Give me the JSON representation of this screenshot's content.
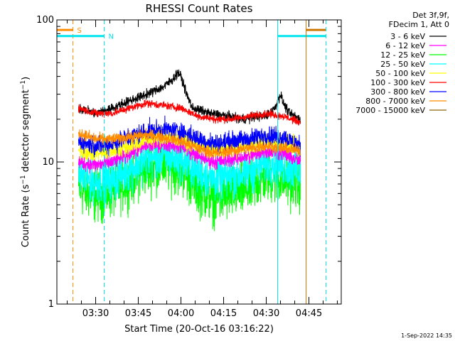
{
  "chart_data": {
    "type": "line",
    "title": "RHESSI Count Rates",
    "xlabel": "Start Time (20-Oct-16 03:16:22)",
    "ylabel_main": "Count Rate (s",
    "ylabel_sup1": "−1",
    "ylabel_mid": " detector segment",
    "ylabel_sup2": "−1",
    "ylabel_end": ")",
    "y_scale": "log",
    "ylim": [
      1,
      100
    ],
    "xlim": [
      "03:16:22",
      "04:56:22"
    ],
    "x_ticks": [
      {
        "t": "03:30",
        "label": "03:30"
      },
      {
        "t": "03:45",
        "label": "03:45"
      },
      {
        "t": "04:00",
        "label": "04:00"
      },
      {
        "t": "04:15",
        "label": "04:15"
      },
      {
        "t": "04:30",
        "label": "04:30"
      },
      {
        "t": "04:45",
        "label": "04:45"
      }
    ],
    "y_ticks": [
      {
        "v": 1,
        "label": "1"
      },
      {
        "v": 10,
        "label": "10"
      },
      {
        "v": 100,
        "label": "100"
      }
    ],
    "legend_header": [
      "Det 3f,9f,",
      "FDecim 1, Att 0"
    ],
    "legend_position": "top-right, outside plot",
    "series": [
      {
        "name": "3 - 6 keV",
        "color": "#000000",
        "times": [
          "03:24",
          "03:30",
          "03:36",
          "03:42",
          "03:48",
          "03:54",
          "03:57",
          "03:59",
          "04:00",
          "04:02",
          "04:04",
          "04:10",
          "04:16",
          "04:22",
          "04:27",
          "04:30",
          "04:33",
          "04:35",
          "04:36",
          "04:38",
          "04:40",
          "04:42"
        ],
        "values": [
          24,
          22,
          24,
          27,
          30,
          34,
          38,
          43,
          40,
          30,
          24,
          22,
          21,
          20,
          21,
          21,
          24,
          30,
          26,
          22,
          21,
          20
        ]
      },
      {
        "name": "6 - 12 keV",
        "color": "#ff00ff",
        "times": [
          "03:24",
          "03:30",
          "03:36",
          "03:42",
          "03:48",
          "03:54",
          "04:00",
          "04:06",
          "04:12",
          "04:18",
          "04:24",
          "04:30",
          "04:36",
          "04:42"
        ],
        "values": [
          10,
          9.5,
          10,
          11.5,
          13,
          13.5,
          13,
          11,
          10,
          10.5,
          11,
          12,
          11.5,
          10
        ]
      },
      {
        "name": "12 - 25 keV",
        "color": "#00ff00",
        "times": [
          "03:24",
          "03:30",
          "03:36",
          "03:42",
          "03:48",
          "03:54",
          "04:00",
          "04:06",
          "04:12",
          "04:18",
          "04:24",
          "04:30",
          "04:36",
          "04:42"
        ],
        "values": [
          6.5,
          5.8,
          6.2,
          7.5,
          9,
          9.5,
          9,
          6.5,
          5.5,
          6,
          6.5,
          8,
          7.5,
          7
        ]
      },
      {
        "name": "25 - 50 keV",
        "color": "#00ffff",
        "times": [
          "03:24",
          "03:30",
          "03:36",
          "03:42",
          "03:48",
          "03:54",
          "04:00",
          "04:06",
          "04:12",
          "04:18",
          "04:24",
          "04:30",
          "04:36",
          "04:42"
        ],
        "values": [
          8,
          7.2,
          7.5,
          9,
          10.5,
          11,
          10.5,
          8.5,
          7.5,
          8,
          8.5,
          10,
          9.5,
          8.5
        ]
      },
      {
        "name": "50 - 100 keV",
        "color": "#ffff00",
        "times": [
          "03:24",
          "03:30",
          "03:36",
          "03:42",
          "03:48",
          "03:54",
          "04:00",
          "04:06",
          "04:12",
          "04:18",
          "04:24",
          "04:30",
          "04:36",
          "04:42"
        ],
        "values": [
          12,
          11.5,
          12,
          13,
          14.5,
          15,
          14.5,
          13,
          12,
          12.5,
          13,
          14,
          13.5,
          13
        ]
      },
      {
        "name": "100 - 300 keV",
        "color": "#ff0000",
        "times": [
          "03:24",
          "03:30",
          "03:36",
          "03:42",
          "03:48",
          "03:54",
          "04:00",
          "04:06",
          "04:12",
          "04:18",
          "04:24",
          "04:30",
          "04:36",
          "04:42"
        ],
        "values": [
          24,
          22,
          22,
          24,
          26,
          25,
          24,
          21,
          20,
          20,
          21,
          22,
          21,
          19
        ]
      },
      {
        "name": "300 - 800 keV",
        "color": "#0000ff",
        "times": [
          "03:24",
          "03:30",
          "03:36",
          "03:42",
          "03:48",
          "03:54",
          "04:00",
          "04:06",
          "04:12",
          "04:18",
          "04:24",
          "04:30",
          "04:36",
          "04:42"
        ],
        "values": [
          14,
          13,
          13.5,
          15,
          16.5,
          17,
          16.5,
          14.5,
          13.5,
          14,
          14.5,
          15.5,
          15,
          13
        ]
      },
      {
        "name": "800 - 7000 keV",
        "color": "#ff8c00",
        "times": [
          "03:24",
          "03:30",
          "03:36",
          "03:42",
          "03:48",
          "03:54",
          "04:00",
          "04:06",
          "04:12",
          "04:18",
          "04:24",
          "04:30",
          "04:36",
          "04:42"
        ],
        "values": [
          16,
          14.5,
          14.5,
          15,
          15.5,
          15,
          14,
          12.5,
          11.5,
          12,
          12.5,
          13,
          12.5,
          12
        ]
      },
      {
        "name": "7000 - 15000 keV",
        "color": "#8b6508",
        "times": [],
        "values": []
      }
    ],
    "markers": [
      {
        "label": "S",
        "color": "#ff8c00",
        "style": "dashed",
        "t": "03:22",
        "bar_from": "03:16:22",
        "bar_to": "03:22",
        "bar_level": 85
      },
      {
        "label": "N",
        "color": "#00e5ee",
        "style": "dashed",
        "t": "03:33",
        "bar_from": "03:16:22",
        "bar_to": "03:33",
        "bar_level": 77
      },
      {
        "label": "",
        "color": "#00e5ee",
        "style": "solid",
        "t": "04:34",
        "bar_from": "04:34",
        "bar_to": "04:51",
        "bar_level": 77
      },
      {
        "label": "",
        "color": "#cc7700",
        "style": "solid",
        "t": "04:44",
        "bar_from": "04:44",
        "bar_to": "04:51",
        "bar_level": 85
      },
      {
        "label": "",
        "color": "#00e5ee",
        "style": "dashed",
        "t": "04:51",
        "bar_from": "",
        "bar_to": "",
        "bar_level": 0
      },
      {
        "label": "",
        "color": "#00e5ee",
        "style": "solid",
        "t": "03:16:22",
        "bar_from": "",
        "bar_to": "",
        "bar_level": 0
      }
    ],
    "timestamp": "1-Sep-2022 14:35"
  }
}
